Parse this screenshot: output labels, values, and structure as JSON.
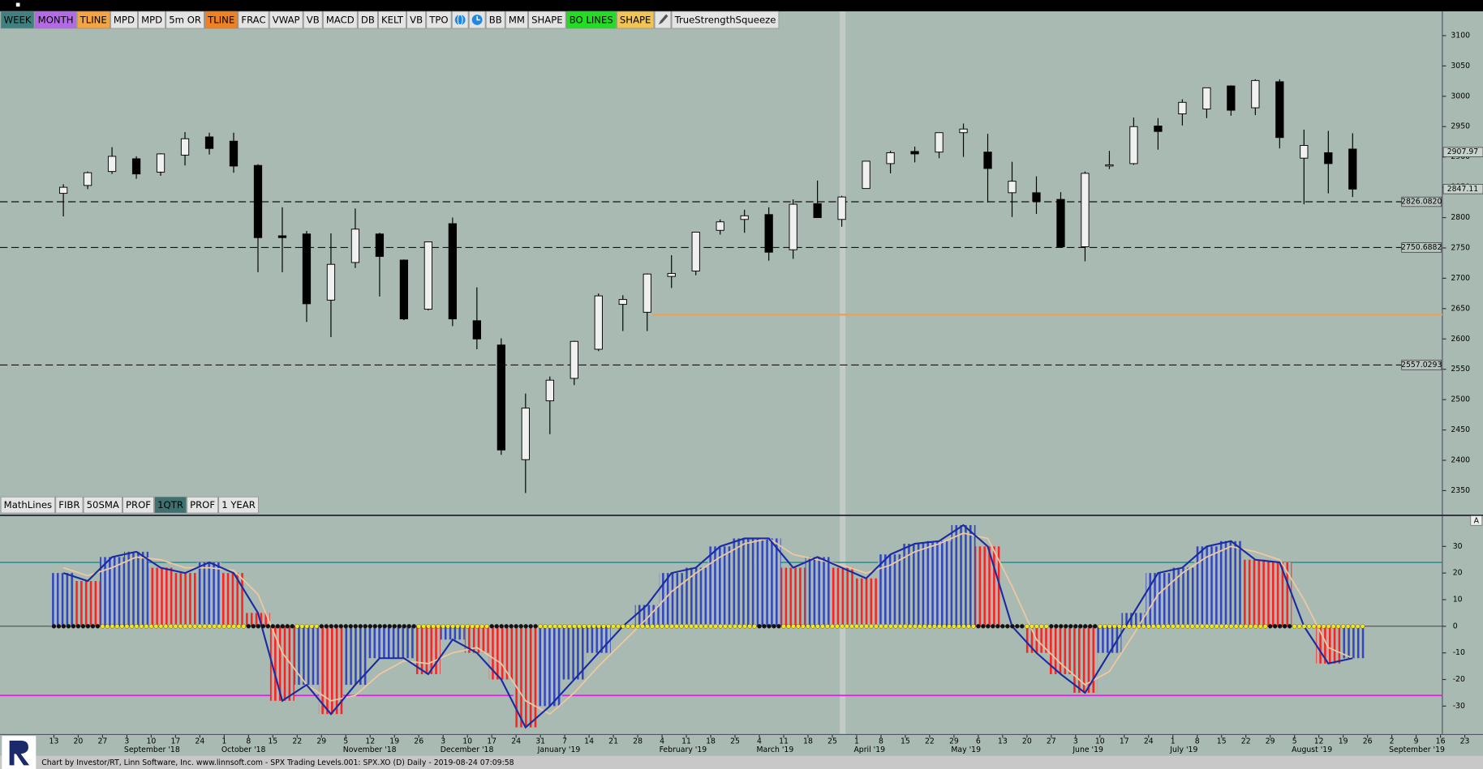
{
  "toolbar": [
    {
      "label": "WEEK",
      "color": "#3f8080"
    },
    {
      "label": "MONTH",
      "color": "#b46ae6"
    },
    {
      "label": "TLINE",
      "color": "#f5a442"
    },
    {
      "label": "MPD"
    },
    {
      "label": "MPD"
    },
    {
      "label": "5m OR"
    },
    {
      "label": "TLINE",
      "color": "#f08020"
    },
    {
      "label": "FRAC"
    },
    {
      "label": "VWAP"
    },
    {
      "label": "VB"
    },
    {
      "label": "MACD"
    },
    {
      "label": "DB"
    },
    {
      "label": "KELT"
    },
    {
      "label": "VB"
    },
    {
      "label": "TPO"
    },
    {
      "icon": "globe",
      "color": "#1e88e5"
    },
    {
      "icon": "clock",
      "color": "#1e88e5"
    },
    {
      "label": "BB"
    },
    {
      "label": "MM"
    },
    {
      "label": "SHAPE"
    },
    {
      "label": "BO LINES",
      "color": "#22dd22"
    },
    {
      "label": "SHAPE",
      "color": "#f2c455"
    },
    {
      "icon": "pencil",
      "color": "#555555"
    },
    {
      "label": "TrueStrengthSqueeze"
    }
  ],
  "toolbar2": [
    {
      "label": "MathLines"
    },
    {
      "label": "FIBR"
    },
    {
      "label": "50SMA"
    },
    {
      "label": "PROF"
    },
    {
      "label": "1QTR",
      "color": "#3f7070",
      "text": "#ffffff"
    },
    {
      "label": "PROF"
    },
    {
      "label": "1 YEAR"
    }
  ],
  "chart_data": [
    {
      "type": "candlestick",
      "open": [
        2840,
        2853,
        2876,
        2897,
        2875,
        2903,
        2933,
        2926,
        2886,
        2770,
        2773,
        2664,
        2726,
        2773,
        2730,
        2649,
        2790,
        2630,
        2590,
        2401,
        2498,
        2535,
        2583,
        2657,
        2644,
        2703,
        2712,
        2779,
        2797,
        2805,
        2747,
        2823,
        2797,
        2848,
        2889,
        2909,
        2908,
        2940,
        2908,
        2841,
        2841,
        2830,
        2752,
        2885,
        2889,
        2951,
        2971,
        2979,
        3017,
        2981,
        3024,
        2898,
        2907,
        2913
      ],
      "high": [
        2855,
        2876,
        2916,
        2901,
        2906,
        2941,
        2940,
        2940,
        2888,
        2817,
        2778,
        2774,
        2815,
        2775,
        2731,
        2760,
        2800,
        2685,
        2601,
        2510,
        2538,
        2597,
        2675,
        2672,
        2708,
        2738,
        2776,
        2797,
        2813,
        2817,
        2830,
        2861,
        2836,
        2893,
        2910,
        2917,
        2940,
        2955,
        2938,
        2892,
        2868,
        2842,
        2876,
        2910,
        2965,
        2964,
        2995,
        3014,
        3018,
        3028,
        3028,
        2945,
        2943,
        2939
      ],
      "low": [
        2802,
        2847,
        2872,
        2864,
        2869,
        2886,
        2904,
        2874,
        2710,
        2710,
        2628,
        2603,
        2717,
        2670,
        2631,
        2647,
        2621,
        2583,
        2409,
        2346,
        2443,
        2524,
        2580,
        2613,
        2613,
        2684,
        2705,
        2772,
        2775,
        2729,
        2732,
        2800,
        2785,
        2848,
        2873,
        2891,
        2898,
        2900,
        2825,
        2801,
        2806,
        2750,
        2728,
        2880,
        2887,
        2912,
        2952,
        2964,
        2968,
        2969,
        2914,
        2822,
        2840,
        2834
      ],
      "close": [
        2850,
        2874,
        2901,
        2872,
        2905,
        2930,
        2914,
        2885,
        2767,
        2767,
        2658,
        2723,
        2781,
        2736,
        2633,
        2760,
        2633,
        2600,
        2417,
        2486,
        2532,
        2596,
        2671,
        2665,
        2707,
        2708,
        2776,
        2793,
        2803,
        2743,
        2822,
        2800,
        2834,
        2893,
        2907,
        2905,
        2940,
        2946,
        2881,
        2860,
        2827,
        2752,
        2873,
        2887,
        2950,
        2942,
        2990,
        3014,
        2977,
        3026,
        2932,
        2919,
        2889,
        2847
      ],
      "ylim": [
        2310,
        3140
      ],
      "yticks": [
        3100,
        3050,
        3000,
        2950,
        2900,
        2850,
        2800,
        2750,
        2700,
        2650,
        2600,
        2550,
        2500,
        2450,
        2400,
        2350
      ],
      "markers": [
        2907.97,
        2847.11
      ],
      "levels": [
        {
          "value": 2826.082,
          "label": "2826.0820"
        },
        {
          "value": 2750.6882,
          "label": "2750.6882"
        },
        {
          "value": 2557.0293,
          "label": "2557.0293"
        }
      ],
      "pivot": {
        "value": 2640,
        "color": "#f0a050"
      }
    },
    {
      "type": "histogram",
      "values": [
        20,
        17,
        26,
        28,
        22,
        20,
        24,
        20,
        5,
        -28,
        -22,
        -33,
        -22,
        -12,
        -12,
        -18,
        -5,
        -10,
        -20,
        -38,
        -30,
        -20,
        -10,
        0,
        8,
        20,
        22,
        30,
        33,
        33,
        22,
        26,
        22,
        18,
        27,
        31,
        32,
        38,
        30,
        0,
        -10,
        -18,
        -25,
        -10,
        5,
        20,
        22,
        30,
        32,
        25,
        24,
        0,
        -14,
        -12
      ],
      "signal": [
        22,
        19,
        22,
        26,
        25,
        22,
        22,
        21,
        12,
        -10,
        -22,
        -28,
        -26,
        -18,
        -13,
        -14,
        -10,
        -8,
        -14,
        -28,
        -33,
        -25,
        -15,
        -6,
        3,
        13,
        20,
        26,
        31,
        33,
        27,
        25,
        23,
        20,
        23,
        28,
        31,
        35,
        33,
        15,
        -5,
        -14,
        -22,
        -17,
        -3,
        12,
        20,
        26,
        30,
        28,
        25,
        10,
        -8,
        -12
      ],
      "squeeze": [
        0,
        0,
        1,
        1,
        1,
        1,
        1,
        1,
        0,
        0,
        1,
        0,
        0,
        0,
        0,
        1,
        1,
        1,
        0,
        0,
        1,
        1,
        1,
        1,
        1,
        1,
        1,
        1,
        1,
        0,
        1,
        1,
        1,
        1,
        1,
        1,
        1,
        1,
        0,
        0,
        1,
        0,
        0,
        1,
        1,
        1,
        1,
        1,
        1,
        1,
        0,
        1,
        1,
        1
      ],
      "ylim": [
        -40.5,
        41.5
      ],
      "yticks": [
        30,
        20,
        10,
        0,
        -10,
        -20,
        -30
      ],
      "upper": 24,
      "lower": -26,
      "panel_label": "A"
    }
  ],
  "date_axis": [
    {
      "day": "13"
    },
    {
      "day": "20"
    },
    {
      "day": "27"
    },
    {
      "day": "3",
      "month": "September '18"
    },
    {
      "day": "10"
    },
    {
      "day": "17"
    },
    {
      "day": "24"
    },
    {
      "day": "1",
      "month": "October '18"
    },
    {
      "day": "8"
    },
    {
      "day": "15"
    },
    {
      "day": "22"
    },
    {
      "day": "29"
    },
    {
      "day": "5",
      "month": "November '18"
    },
    {
      "day": "12"
    },
    {
      "day": "19"
    },
    {
      "day": "26"
    },
    {
      "day": "3",
      "month": "December '18"
    },
    {
      "day": "10"
    },
    {
      "day": "17"
    },
    {
      "day": "24"
    },
    {
      "day": "31",
      "month": "January '19"
    },
    {
      "day": "7"
    },
    {
      "day": "14"
    },
    {
      "day": "21"
    },
    {
      "day": "28"
    },
    {
      "day": "4",
      "month": "February '19"
    },
    {
      "day": "11"
    },
    {
      "day": "18"
    },
    {
      "day": "25"
    },
    {
      "day": "4",
      "month": "March '19"
    },
    {
      "day": "11"
    },
    {
      "day": "18"
    },
    {
      "day": "25"
    },
    {
      "day": "1",
      "month": "April '19"
    },
    {
      "day": "8"
    },
    {
      "day": "15"
    },
    {
      "day": "22"
    },
    {
      "day": "29",
      "month": "May '19"
    },
    {
      "day": "6"
    },
    {
      "day": "13"
    },
    {
      "day": "20"
    },
    {
      "day": "27"
    },
    {
      "day": "3",
      "month": "June '19"
    },
    {
      "day": "10"
    },
    {
      "day": "17"
    },
    {
      "day": "24"
    },
    {
      "day": "1",
      "month": "July '19"
    },
    {
      "day": "8"
    },
    {
      "day": "15"
    },
    {
      "day": "22"
    },
    {
      "day": "29"
    },
    {
      "day": "5",
      "month": "August '19"
    },
    {
      "day": "12"
    },
    {
      "day": "19"
    },
    {
      "day": "26"
    },
    {
      "day": "2",
      "month": "September '19"
    },
    {
      "day": "9"
    },
    {
      "day": "16"
    },
    {
      "day": "23"
    }
  ],
  "footer": "Chart by Investor/RT, Linn Software, Inc. www.linnsoft.com - SPX Trading Levels.001: SPX.XO (D) Daily - 2019-08-24 07:09:58"
}
